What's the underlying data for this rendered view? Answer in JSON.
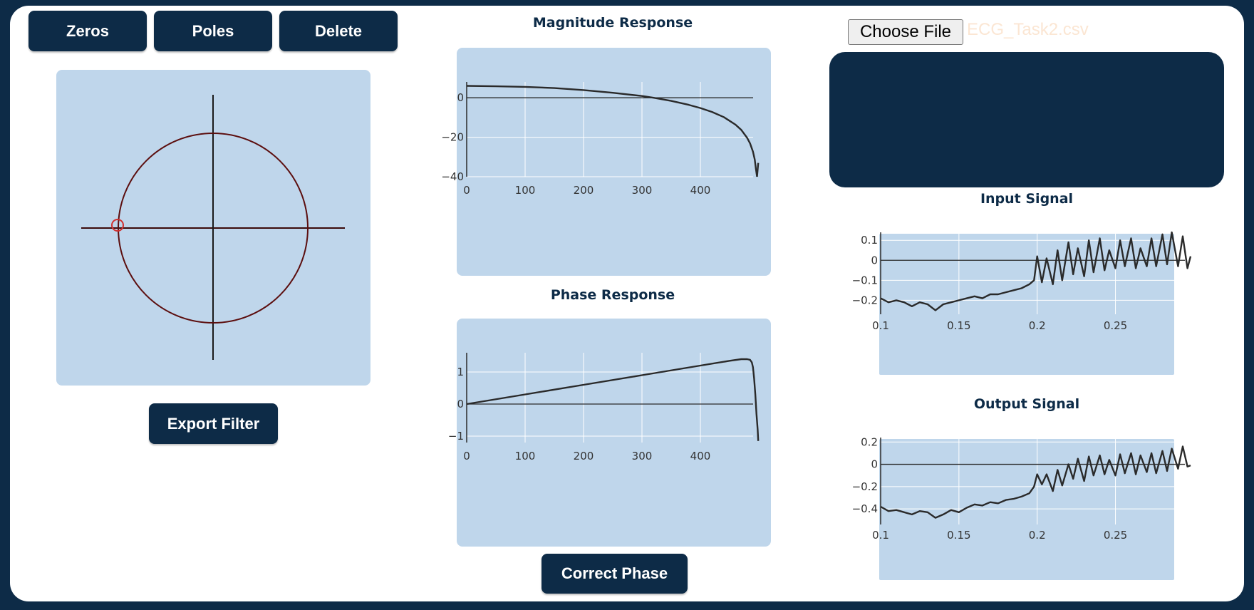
{
  "toolbar": {
    "zeros_label": "Zeros",
    "poles_label": "Poles",
    "delete_label": "Delete"
  },
  "export_label": "Export Filter",
  "correct_phase_label": "Correct Phase",
  "file": {
    "button_label": "Choose File",
    "file_name": "ECG_Task2.csv"
  },
  "zplane": {
    "unit_circle_color": "#5c0e0e",
    "zero_marker_color": "#d0302f",
    "zeros": [
      {
        "re": -1,
        "im": 0
      }
    ]
  },
  "colors": {
    "accent": "#0d2b47",
    "panel": "#bfd6eb",
    "trace": "#2a2a2a"
  },
  "chart_data": [
    {
      "type": "line",
      "title": "Magnitude Response",
      "xlim": [
        0,
        500
      ],
      "ylim": [
        -40,
        8
      ],
      "xticks": [
        0,
        100,
        200,
        300,
        400
      ],
      "yticks": [
        0,
        -20,
        -40
      ],
      "xtick_labels": [
        "0",
        "100",
        "200",
        "300",
        "400"
      ],
      "ytick_labels": [
        "0",
        "−20",
        "−40"
      ],
      "grid": true,
      "x": [
        0,
        50,
        100,
        150,
        200,
        250,
        300,
        320,
        350,
        380,
        400,
        420,
        440,
        460,
        470,
        480,
        485,
        490,
        493,
        495,
        497
      ],
      "y": [
        6,
        5.8,
        5.5,
        4.9,
        3.9,
        2.5,
        0.9,
        0,
        -1.6,
        -3.6,
        -5.2,
        -7.2,
        -9.8,
        -13.6,
        -16.3,
        -20.3,
        -23.1,
        -27.3,
        -31.3,
        -36,
        -40
      ],
      "end_x": [
        497,
        499
      ],
      "end_y": [
        -40,
        -33
      ]
    },
    {
      "type": "line",
      "title": "Phase Response",
      "xlim": [
        0,
        500
      ],
      "ylim": [
        -1.2,
        1.6
      ],
      "xticks": [
        0,
        100,
        200,
        300,
        400
      ],
      "yticks": [
        1,
        0,
        -1
      ],
      "xtick_labels": [
        "0",
        "100",
        "200",
        "300",
        "400"
      ],
      "ytick_labels": [
        "1",
        "0",
        "−1"
      ],
      "grid": true,
      "x": [
        0,
        100,
        200,
        300,
        400,
        450,
        470,
        480,
        485,
        488,
        490,
        492,
        494,
        496,
        498,
        499
      ],
      "y": [
        0,
        0.3,
        0.6,
        0.9,
        1.2,
        1.35,
        1.4,
        1.4,
        1.38,
        1.3,
        1.15,
        0.8,
        0.3,
        -0.3,
        -0.8,
        -1.15
      ]
    },
    {
      "type": "line",
      "title": "Input Signal",
      "xlim": [
        0.1,
        0.298
      ],
      "ylim": [
        -0.27,
        0.14
      ],
      "xticks": [
        0.1,
        0.15,
        0.2,
        0.25
      ],
      "yticks": [
        0.1,
        0,
        -0.1,
        -0.2
      ],
      "xtick_labels": [
        "0.1",
        "0.15",
        "0.2",
        "0.25"
      ],
      "ytick_labels": [
        "0.1",
        "0",
        "−0.1",
        "−0.2"
      ],
      "grid": true,
      "x": [
        0.1,
        0.105,
        0.11,
        0.115,
        0.12,
        0.125,
        0.13,
        0.135,
        0.14,
        0.145,
        0.15,
        0.155,
        0.16,
        0.165,
        0.17,
        0.175,
        0.18,
        0.185,
        0.19,
        0.195,
        0.198,
        0.2,
        0.203,
        0.206,
        0.21,
        0.213,
        0.216,
        0.22,
        0.223,
        0.226,
        0.23,
        0.233,
        0.236,
        0.24,
        0.243,
        0.246,
        0.25,
        0.253,
        0.256,
        0.26,
        0.263,
        0.266,
        0.27,
        0.273,
        0.276,
        0.28,
        0.283,
        0.286,
        0.29,
        0.293,
        0.296,
        0.298
      ],
      "y": [
        -0.19,
        -0.21,
        -0.2,
        -0.21,
        -0.23,
        -0.21,
        -0.22,
        -0.25,
        -0.22,
        -0.21,
        -0.2,
        -0.19,
        -0.18,
        -0.19,
        -0.17,
        -0.17,
        -0.16,
        -0.15,
        -0.14,
        -0.12,
        -0.1,
        0.02,
        -0.11,
        0.01,
        -0.12,
        0.05,
        -0.1,
        0.09,
        -0.07,
        0.06,
        -0.08,
        0.1,
        -0.06,
        0.11,
        -0.05,
        0.05,
        -0.04,
        0.1,
        -0.03,
        0.11,
        -0.04,
        0.06,
        -0.03,
        0.11,
        -0.03,
        0.13,
        -0.02,
        0.14,
        -0.03,
        0.12,
        -0.04,
        0.02
      ]
    },
    {
      "type": "line",
      "title": "Output Signal",
      "xlim": [
        0.1,
        0.298
      ],
      "ylim": [
        -0.54,
        0.24
      ],
      "xticks": [
        0.1,
        0.15,
        0.2,
        0.25
      ],
      "yticks": [
        0.2,
        0,
        -0.2,
        -0.4
      ],
      "xtick_labels": [
        "0.1",
        "0.15",
        "0.2",
        "0.25"
      ],
      "ytick_labels": [
        "0.2",
        "0",
        "−0.2",
        "−0.4"
      ],
      "grid": true,
      "x": [
        0.1,
        0.105,
        0.11,
        0.115,
        0.12,
        0.125,
        0.13,
        0.135,
        0.14,
        0.145,
        0.15,
        0.155,
        0.16,
        0.165,
        0.17,
        0.175,
        0.18,
        0.185,
        0.19,
        0.195,
        0.198,
        0.2,
        0.203,
        0.206,
        0.21,
        0.213,
        0.216,
        0.22,
        0.223,
        0.226,
        0.23,
        0.233,
        0.236,
        0.24,
        0.243,
        0.246,
        0.25,
        0.253,
        0.256,
        0.26,
        0.263,
        0.266,
        0.27,
        0.273,
        0.276,
        0.28,
        0.283,
        0.286,
        0.29,
        0.293,
        0.296,
        0.298
      ],
      "y": [
        -0.38,
        -0.42,
        -0.41,
        -0.43,
        -0.45,
        -0.42,
        -0.43,
        -0.48,
        -0.45,
        -0.41,
        -0.43,
        -0.39,
        -0.36,
        -0.37,
        -0.34,
        -0.35,
        -0.32,
        -0.31,
        -0.29,
        -0.26,
        -0.2,
        -0.09,
        -0.18,
        -0.09,
        -0.24,
        -0.05,
        -0.19,
        0.0,
        -0.13,
        0.05,
        -0.15,
        0.07,
        -0.1,
        0.08,
        -0.09,
        0.04,
        -0.1,
        0.09,
        -0.08,
        0.1,
        -0.09,
        0.08,
        -0.07,
        0.1,
        -0.08,
        0.12,
        -0.06,
        0.14,
        -0.04,
        0.16,
        -0.02,
        -0.01
      ]
    }
  ]
}
